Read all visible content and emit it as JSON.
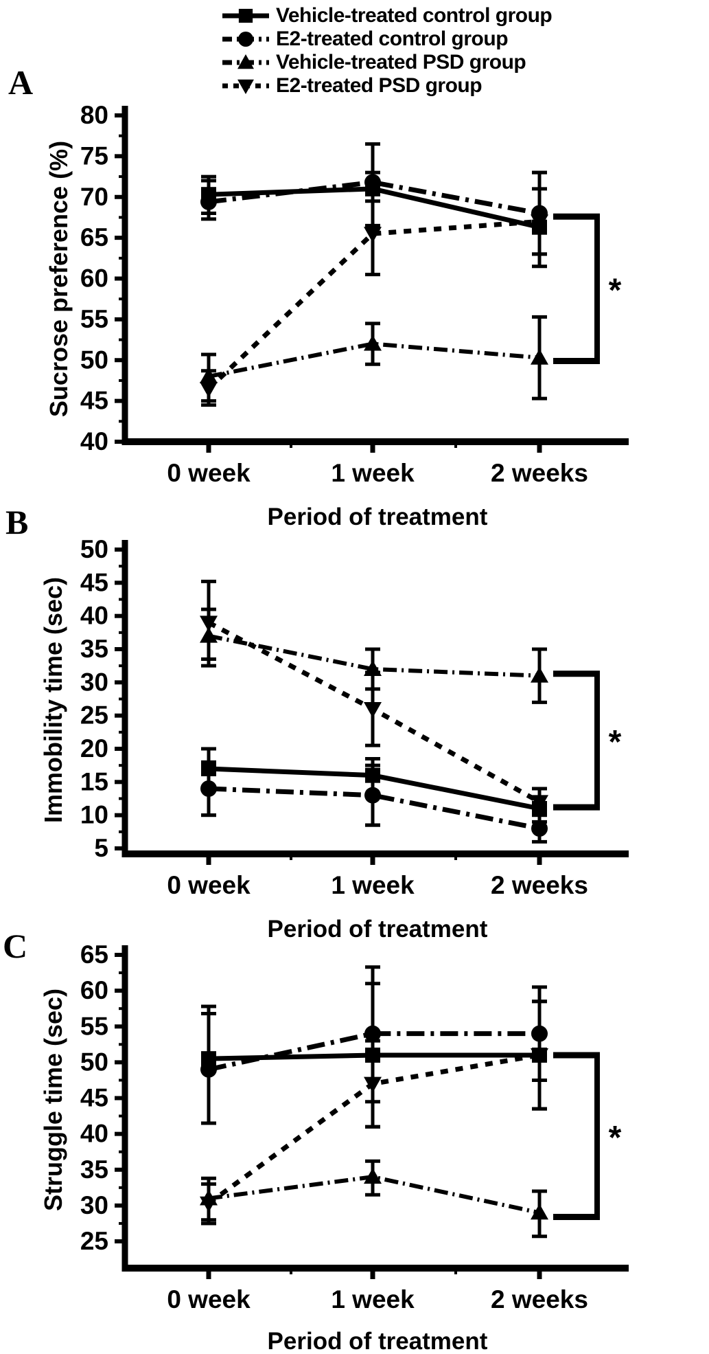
{
  "figure": {
    "panels": [
      {
        "label": "A"
      },
      {
        "label": "B"
      },
      {
        "label": "C"
      }
    ],
    "ink_color": "#000000",
    "background_color": "#ffffff"
  },
  "legend": {
    "items": [
      {
        "label": "Vehicle-treated control group",
        "marker": "square",
        "line": "solid"
      },
      {
        "label": "E2-treated control group",
        "marker": "circle",
        "line": "dashdot"
      },
      {
        "label": "Vehicle-treated PSD group",
        "marker": "triangle-up",
        "line": "dashdotdot"
      },
      {
        "label": "E2-treated PSD group",
        "marker": "triangle-down",
        "line": "dotted"
      }
    ]
  },
  "chart_data": [
    {
      "type": "line",
      "panel": "A",
      "xlabel": "Period of treatment",
      "ylabel": "Sucrose preference (%)",
      "categories": [
        "0 week",
        "1 week",
        "2 weeks"
      ],
      "ylim": [
        40,
        80
      ],
      "yticks": [
        80,
        75,
        70,
        65,
        60,
        55,
        50,
        45,
        40
      ],
      "grid": false,
      "legend_position": "top-right-above-plot",
      "series": [
        {
          "name": "Vehicle-treated control group",
          "marker": "square",
          "line": "solid",
          "values": [
            70.3,
            71.0,
            66.3
          ],
          "err": [
            [
              68.0,
              72.5
            ],
            [
              69.5,
              73.0
            ],
            [
              61.5,
              73.0
            ]
          ]
        },
        {
          "name": "E2-treated control group",
          "marker": "circle",
          "line": "dashdot",
          "values": [
            69.4,
            71.8,
            68.0
          ],
          "err": [
            [
              67.3,
              72.0
            ],
            [
              66.5,
              76.5
            ],
            [
              63.0,
              73.0
            ]
          ]
        },
        {
          "name": "Vehicle-treated PSD group",
          "marker": "triangle-up",
          "line": "dashdotdot",
          "values": [
            48.0,
            52.0,
            50.3
          ],
          "err": [
            [
              45.0,
              50.7
            ],
            [
              49.5,
              54.5
            ],
            [
              45.3,
              55.3
            ]
          ]
        },
        {
          "name": "E2-treated PSD group",
          "marker": "triangle-down",
          "line": "dotted",
          "values": [
            46.5,
            65.5,
            67.0
          ],
          "err": [
            [
              44.5,
              48.7
            ],
            [
              60.5,
              70.5
            ],
            [
              63.0,
              71.0
            ]
          ]
        }
      ],
      "sig_bracket": {
        "symbol": "*",
        "top_value": 67.6,
        "bottom_value": 49.9
      }
    },
    {
      "type": "line",
      "panel": "B",
      "xlabel": "Period of treatment",
      "ylabel": "Immobility time (sec)",
      "categories": [
        "0 week",
        "1 week",
        "2 weeks"
      ],
      "ylim": [
        5,
        50
      ],
      "yticks": [
        50,
        45,
        40,
        35,
        30,
        25,
        20,
        15,
        10,
        5
      ],
      "grid": false,
      "series": [
        {
          "name": "Vehicle-treated control group",
          "marker": "square",
          "line": "solid",
          "values": [
            17.0,
            16.0,
            11.0
          ],
          "err": [
            [
              10.0,
              20.0
            ],
            [
              8.5,
              18.5
            ],
            [
              9.0,
              14.0
            ]
          ]
        },
        {
          "name": "E2-treated control group",
          "marker": "circle",
          "line": "dashdot",
          "values": [
            14.0,
            13.0,
            8.0
          ],
          "err": [
            [
              10.0,
              18.0
            ],
            [
              8.5,
              17.5
            ],
            [
              6.0,
              10.0
            ]
          ]
        },
        {
          "name": "Vehicle-treated PSD group",
          "marker": "triangle-up",
          "line": "dashdotdot",
          "values": [
            37.0,
            32.0,
            31.0
          ],
          "err": [
            [
              32.5,
              41.0
            ],
            [
              29.0,
              35.0
            ],
            [
              27.0,
              35.0
            ]
          ]
        },
        {
          "name": "E2-treated PSD group",
          "marker": "triangle-down",
          "line": "dotted",
          "values": [
            39.0,
            26.0,
            12.0
          ],
          "err": [
            [
              33.5,
              45.2
            ],
            [
              20.5,
              31.5
            ],
            [
              10.0,
              14.0
            ]
          ]
        }
      ],
      "sig_bracket": {
        "symbol": "*",
        "top_value": 31.3,
        "bottom_value": 11.2
      }
    },
    {
      "type": "line",
      "panel": "C",
      "xlabel": "Period of treatment",
      "ylabel": "Struggle time (sec)",
      "categories": [
        "0 week",
        "1 week",
        "2 weeks"
      ],
      "ylim": [
        25,
        65
      ],
      "yticks": [
        65,
        60,
        55,
        50,
        45,
        40,
        35,
        30,
        25
      ],
      "grid": false,
      "series": [
        {
          "name": "Vehicle-treated control group",
          "marker": "square",
          "line": "solid",
          "values": [
            50.5,
            51.0,
            51.0
          ],
          "err": [
            [
              41.5,
              57.8
            ],
            [
              41.0,
              61.0
            ],
            [
              43.5,
              58.5
            ]
          ]
        },
        {
          "name": "E2-treated control group",
          "marker": "circle",
          "line": "dashdot",
          "values": [
            49.0,
            54.0,
            54.0
          ],
          "err": [
            [
              41.5,
              56.8
            ],
            [
              44.5,
              63.3
            ],
            [
              47.5,
              60.5
            ]
          ]
        },
        {
          "name": "Vehicle-treated PSD group",
          "marker": "triangle-up",
          "line": "dashdotdot",
          "values": [
            31.0,
            34.0,
            29.0
          ],
          "err": [
            [
              28.0,
              33.8
            ],
            [
              31.5,
              36.2
            ],
            [
              25.7,
              32.0
            ]
          ]
        },
        {
          "name": "E2-treated PSD group",
          "marker": "triangle-down",
          "line": "dotted",
          "values": [
            30.3,
            47.0,
            51.0
          ],
          "err": [
            [
              27.5,
              33.0
            ],
            [
              41.0,
              53.0
            ],
            [
              43.5,
              58.5
            ]
          ]
        }
      ],
      "sig_bracket": {
        "symbol": "*",
        "top_value": 51.0,
        "bottom_value": 28.4
      }
    }
  ]
}
